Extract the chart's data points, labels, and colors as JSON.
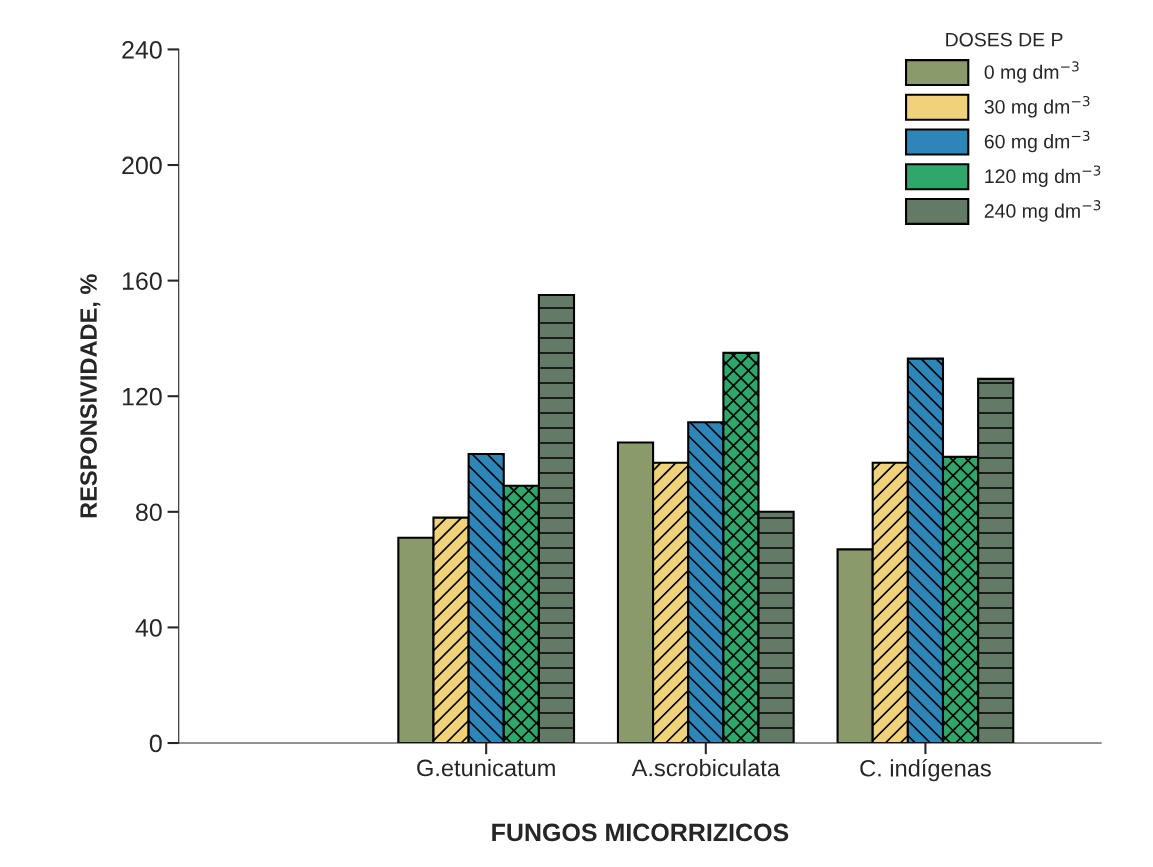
{
  "chart_data": {
    "type": "bar",
    "xlabel": "FUNGOS MICORRIZICOS",
    "ylabel": "RESPONSIVIDADE, %",
    "legend_title": "DOSES DE P",
    "categories": [
      "G.etunicatum",
      "A.scrobiculata",
      "C. indígenas"
    ],
    "series": [
      {
        "name": "0 mg dm$^{−3}$",
        "color": "#8a9a6a",
        "values": [
          71,
          104,
          67
        ]
      },
      {
        "name": "30 mg dm$^{−3}$",
        "color": "#f0d27a",
        "values": [
          78,
          97,
          97
        ]
      },
      {
        "name": "60 mg dm$^{−3}$",
        "color": "#2e86b8",
        "values": [
          100,
          111,
          133
        ]
      },
      {
        "name": "120 mg dm$^{−3}$",
        "color": "#2fa66a",
        "values": [
          89,
          135,
          99
        ]
      },
      {
        "name": "240 mg dm$^{−3}$",
        "color": "#637a66",
        "values": [
          155,
          80,
          126
        ]
      }
    ],
    "ylim": [
      0,
      240
    ],
    "yticks": [
      0,
      40,
      80,
      120,
      160,
      200,
      240
    ],
    "grid": false,
    "legend": "top right"
  }
}
